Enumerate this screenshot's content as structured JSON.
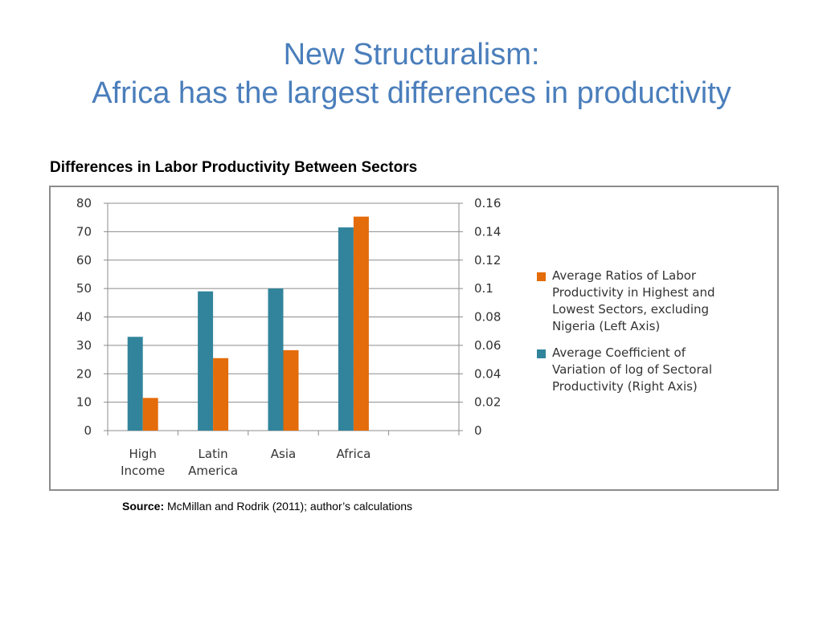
{
  "slide": {
    "title_line1": "New Structuralism:",
    "title_line2": "Africa has the largest differences in productivity",
    "chart_heading": "Differences in Labor Productivity Between Sectors",
    "source_label": "Source:",
    "source_text": "McMillan and Rodrik (2011); author’s calculations"
  },
  "colors": {
    "title": "#4a7ebb",
    "teal": "#31849b",
    "orange": "#e46c0a",
    "grid": "#8c8c8c"
  },
  "chart_data": {
    "type": "bar",
    "categories": [
      [
        "High",
        "Income"
      ],
      [
        "Latin",
        "America"
      ],
      [
        "Asia"
      ],
      [
        "Africa"
      ]
    ],
    "series": [
      {
        "name": "Average Coefficient of Variation of log of Sectoral Productivity (Right Axis)",
        "axis": "right",
        "color": "#31849b",
        "values": [
          0.066,
          0.098,
          0.1,
          0.143
        ]
      },
      {
        "name": "Average Ratios of Labor Productivity in Highest and Lowest Sectors, excluding Nigeria (Left Axis)",
        "axis": "left",
        "color": "#e46c0a",
        "values": [
          11.5,
          25.5,
          28.3,
          75.3
        ]
      }
    ],
    "left_axis": {
      "min": 0,
      "max": 80,
      "ticks": [
        "0",
        "10",
        "20",
        "30",
        "40",
        "50",
        "60",
        "70",
        "80"
      ]
    },
    "right_axis": {
      "min": 0,
      "max": 0.16,
      "ticks": [
        "0",
        "0.02",
        "0.04",
        "0.06",
        "0.08",
        "0.1",
        "0.12",
        "0.14",
        "0.16"
      ]
    },
    "legend": [
      {
        "lines": [
          "Average Ratios of Labor",
          "Productivity in Highest and",
          "Lowest Sectors, excluding",
          "Nigeria (Left Axis)"
        ],
        "color": "#e46c0a"
      },
      {
        "lines": [
          "Average Coefficient of",
          "Variation of log of Sectoral",
          "Productivity (Right Axis)"
        ],
        "color": "#31849b"
      }
    ],
    "legend_position": "right",
    "grid": true
  }
}
